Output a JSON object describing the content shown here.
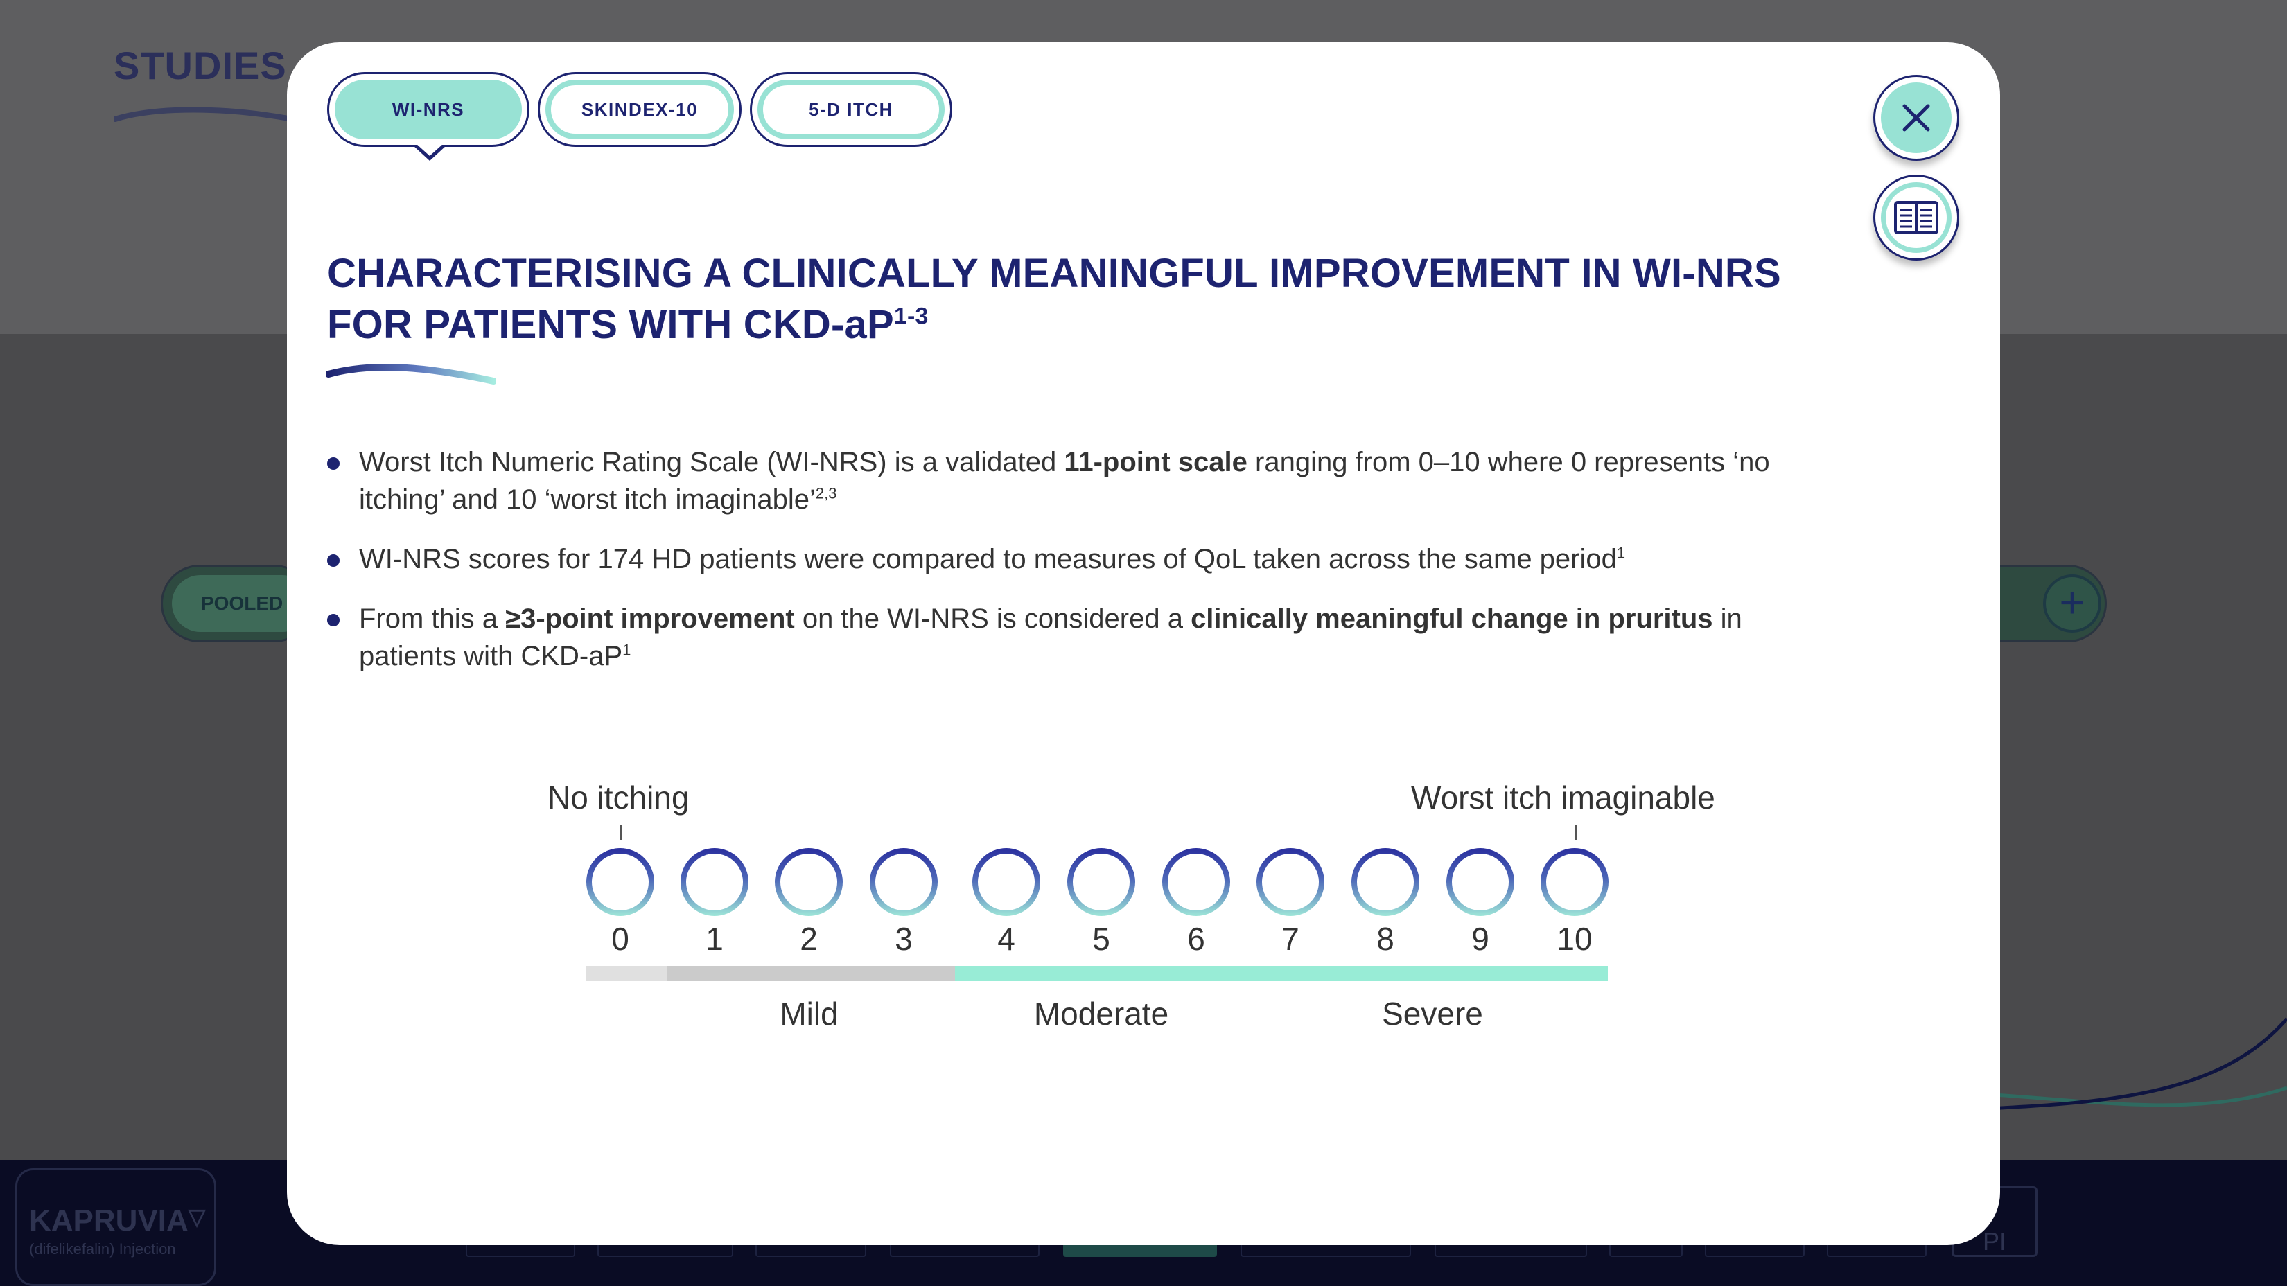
{
  "background": {
    "section_title": "STUDIES",
    "filter_pill_label": "POOLED",
    "footer": {
      "brand": "KAPRUVIA",
      "brand_mark": "▽",
      "brand_sub": "(difelikefalin) Injection",
      "pi_label": "PI"
    }
  },
  "modal": {
    "tabs": [
      {
        "label": "WI-NRS",
        "active": true
      },
      {
        "label": "SKINDEX-10",
        "active": false
      },
      {
        "label": "5-D ITCH",
        "active": false
      }
    ],
    "close_icon": "close-icon",
    "references_icon": "book-icon",
    "title": {
      "line1": "CHARACTERISING A CLINICALLY MEANINGFUL IMPROVEMENT IN WI-NRS",
      "line2": "FOR PATIENTS WITH CKD-aP",
      "line2_sup": "1-3"
    },
    "bullets": [
      {
        "pre": "Worst Itch Numeric Rating Scale (WI-NRS) is a validated ",
        "bold": "11-point scale",
        "post": " ranging from 0–10 where 0 represents ‘no itching’ and 10 ‘worst itch imaginable’",
        "sup": "2,3"
      },
      {
        "text": "WI-NRS scores for 174 HD patients were compared to measures of QoL taken across the same period",
        "sup": "1"
      },
      {
        "pre": "From this a ",
        "bold1": "≥3-point improvement",
        "mid": " on the WI-NRS is considered a ",
        "bold2": "clinically meaningful change in pruritus",
        "post": " in patients with CKD-aP",
        "sup": "1"
      }
    ],
    "scale": {
      "min_label": "No itching",
      "max_label": "Worst itch imaginable",
      "points": [
        "0",
        "1",
        "2",
        "3",
        "4",
        "5",
        "6",
        "7",
        "8",
        "9",
        "10"
      ],
      "severity_bands": [
        {
          "label": "Mild",
          "from": 1,
          "to": 3,
          "color": "#cbcbcb"
        },
        {
          "label": "Moderate",
          "from": 4,
          "to": 6,
          "color": "#98ecd6"
        },
        {
          "label": "Severe",
          "from": 7,
          "to": 10,
          "color": "#98ecd6"
        }
      ],
      "none_band_color": "#e0e0e0"
    },
    "colors": {
      "navy": "#1d2370",
      "teal": "#98e2d4"
    }
  }
}
